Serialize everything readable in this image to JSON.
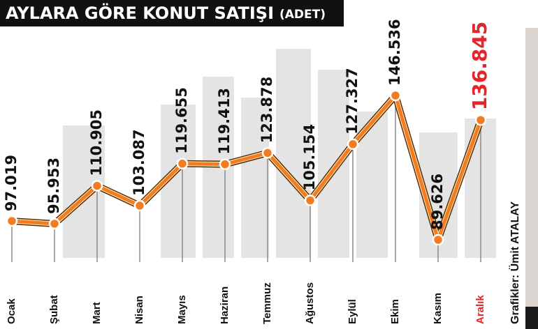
{
  "chart_data": {
    "type": "line",
    "title": "AYLARA GÖRE KONUT SATIŞI",
    "subtitle": "(ADET)",
    "credit": "Grafikler: Ümit ATALAY",
    "categories": [
      "Ocak",
      "Şubat",
      "Mart",
      "Nisan",
      "Mayıs",
      "Haziran",
      "Temmuz",
      "Ağustos",
      "Eylül",
      "Ekim",
      "Kasım",
      "Aralık"
    ],
    "values": [
      97019,
      95953,
      110905,
      103087,
      119655,
      119413,
      123878,
      105154,
      127327,
      146536,
      89626,
      136845
    ],
    "value_labels": [
      "97.019",
      "95.953",
      "110.905",
      "103.087",
      "119.655",
      "119.413",
      "123.878",
      "105.154",
      "127.327",
      "146.536",
      "89.626",
      "136.845"
    ],
    "color": "#f47b20",
    "highlight_index": 11,
    "highlight_color": "#e3262b"
  }
}
